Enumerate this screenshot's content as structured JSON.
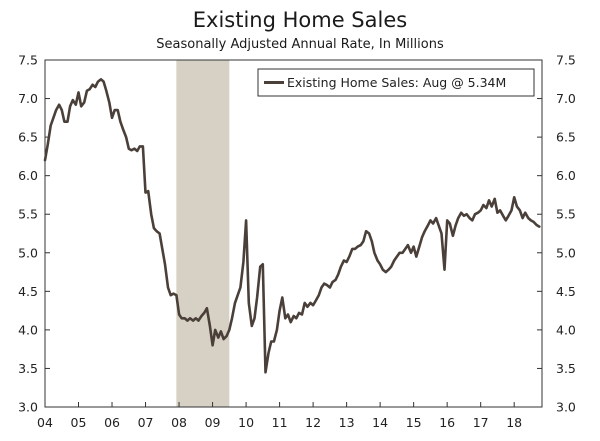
{
  "chart_data": {
    "type": "line",
    "title": "Existing Home Sales",
    "subtitle": "Seasonally Adjusted Annual Rate, In Millions",
    "xlabel": "",
    "ylabel": "",
    "ylim": [
      3.0,
      7.5
    ],
    "xlim": [
      2004.0,
      2018.83
    ],
    "y_ticks": [
      "3.0",
      "3.5",
      "4.0",
      "4.5",
      "5.0",
      "5.5",
      "6.0",
      "6.5",
      "7.0",
      "7.5"
    ],
    "x_ticks": [
      "04",
      "05",
      "06",
      "07",
      "08",
      "09",
      "10",
      "11",
      "12",
      "13",
      "14",
      "15",
      "16",
      "17",
      "18"
    ],
    "recession": {
      "start": 2007.92,
      "end": 2009.5
    },
    "legend_position": "top-right",
    "series": [
      {
        "name": "Existing Home Sales: Aug @ 5.34M",
        "color": "#4a4039",
        "points": [
          [
            2004.0,
            6.2
          ],
          [
            2004.08,
            6.4
          ],
          [
            2004.17,
            6.65
          ],
          [
            2004.25,
            6.75
          ],
          [
            2004.33,
            6.85
          ],
          [
            2004.42,
            6.92
          ],
          [
            2004.5,
            6.85
          ],
          [
            2004.58,
            6.7
          ],
          [
            2004.67,
            6.7
          ],
          [
            2004.75,
            6.9
          ],
          [
            2004.83,
            6.98
          ],
          [
            2004.92,
            6.92
          ],
          [
            2005.0,
            7.08
          ],
          [
            2005.08,
            6.9
          ],
          [
            2005.17,
            6.95
          ],
          [
            2005.25,
            7.1
          ],
          [
            2005.33,
            7.12
          ],
          [
            2005.42,
            7.18
          ],
          [
            2005.5,
            7.15
          ],
          [
            2005.58,
            7.22
          ],
          [
            2005.67,
            7.25
          ],
          [
            2005.75,
            7.22
          ],
          [
            2005.83,
            7.1
          ],
          [
            2005.92,
            6.95
          ],
          [
            2006.0,
            6.75
          ],
          [
            2006.08,
            6.85
          ],
          [
            2006.17,
            6.85
          ],
          [
            2006.25,
            6.7
          ],
          [
            2006.33,
            6.6
          ],
          [
            2006.42,
            6.5
          ],
          [
            2006.5,
            6.35
          ],
          [
            2006.58,
            6.33
          ],
          [
            2006.67,
            6.35
          ],
          [
            2006.75,
            6.32
          ],
          [
            2006.83,
            6.38
          ],
          [
            2006.92,
            6.38
          ],
          [
            2007.0,
            5.78
          ],
          [
            2007.08,
            5.8
          ],
          [
            2007.17,
            5.5
          ],
          [
            2007.25,
            5.32
          ],
          [
            2007.33,
            5.28
          ],
          [
            2007.42,
            5.25
          ],
          [
            2007.5,
            5.05
          ],
          [
            2007.58,
            4.85
          ],
          [
            2007.67,
            4.55
          ],
          [
            2007.75,
            4.45
          ],
          [
            2007.83,
            4.47
          ],
          [
            2007.92,
            4.45
          ],
          [
            2008.0,
            4.2
          ],
          [
            2008.08,
            4.15
          ],
          [
            2008.17,
            4.15
          ],
          [
            2008.25,
            4.12
          ],
          [
            2008.33,
            4.15
          ],
          [
            2008.42,
            4.12
          ],
          [
            2008.5,
            4.15
          ],
          [
            2008.58,
            4.12
          ],
          [
            2008.67,
            4.18
          ],
          [
            2008.75,
            4.22
          ],
          [
            2008.83,
            4.28
          ],
          [
            2008.92,
            4.05
          ],
          [
            2009.0,
            3.8
          ],
          [
            2009.08,
            4.0
          ],
          [
            2009.17,
            3.9
          ],
          [
            2009.25,
            3.98
          ],
          [
            2009.33,
            3.88
          ],
          [
            2009.42,
            3.92
          ],
          [
            2009.5,
            4.0
          ],
          [
            2009.58,
            4.15
          ],
          [
            2009.67,
            4.35
          ],
          [
            2009.75,
            4.45
          ],
          [
            2009.83,
            4.55
          ],
          [
            2009.92,
            4.88
          ],
          [
            2010.0,
            5.42
          ],
          [
            2010.08,
            4.35
          ],
          [
            2010.17,
            4.05
          ],
          [
            2010.25,
            4.15
          ],
          [
            2010.33,
            4.42
          ],
          [
            2010.42,
            4.82
          ],
          [
            2010.5,
            4.85
          ],
          [
            2010.58,
            3.45
          ],
          [
            2010.67,
            3.7
          ],
          [
            2010.75,
            3.85
          ],
          [
            2010.83,
            3.85
          ],
          [
            2010.92,
            4.0
          ],
          [
            2011.0,
            4.25
          ],
          [
            2011.08,
            4.42
          ],
          [
            2011.17,
            4.15
          ],
          [
            2011.25,
            4.2
          ],
          [
            2011.33,
            4.1
          ],
          [
            2011.42,
            4.18
          ],
          [
            2011.5,
            4.15
          ],
          [
            2011.58,
            4.22
          ],
          [
            2011.67,
            4.2
          ],
          [
            2011.75,
            4.35
          ],
          [
            2011.83,
            4.3
          ],
          [
            2011.92,
            4.35
          ],
          [
            2012.0,
            4.32
          ],
          [
            2012.08,
            4.38
          ],
          [
            2012.17,
            4.45
          ],
          [
            2012.25,
            4.55
          ],
          [
            2012.33,
            4.6
          ],
          [
            2012.42,
            4.58
          ],
          [
            2012.5,
            4.55
          ],
          [
            2012.58,
            4.62
          ],
          [
            2012.67,
            4.65
          ],
          [
            2012.75,
            4.72
          ],
          [
            2012.83,
            4.82
          ],
          [
            2012.92,
            4.9
          ],
          [
            2013.0,
            4.88
          ],
          [
            2013.08,
            4.95
          ],
          [
            2013.17,
            5.05
          ],
          [
            2013.25,
            5.05
          ],
          [
            2013.33,
            5.08
          ],
          [
            2013.42,
            5.1
          ],
          [
            2013.5,
            5.15
          ],
          [
            2013.58,
            5.28
          ],
          [
            2013.67,
            5.25
          ],
          [
            2013.75,
            5.15
          ],
          [
            2013.83,
            5.0
          ],
          [
            2013.92,
            4.9
          ],
          [
            2014.0,
            4.85
          ],
          [
            2014.08,
            4.78
          ],
          [
            2014.17,
            4.75
          ],
          [
            2014.25,
            4.78
          ],
          [
            2014.33,
            4.82
          ],
          [
            2014.42,
            4.9
          ],
          [
            2014.5,
            4.95
          ],
          [
            2014.58,
            5.0
          ],
          [
            2014.67,
            5.0
          ],
          [
            2014.75,
            5.05
          ],
          [
            2014.83,
            5.1
          ],
          [
            2014.92,
            5.0
          ],
          [
            2015.0,
            5.08
          ],
          [
            2015.08,
            4.95
          ],
          [
            2015.17,
            5.08
          ],
          [
            2015.25,
            5.2
          ],
          [
            2015.33,
            5.28
          ],
          [
            2015.42,
            5.35
          ],
          [
            2015.5,
            5.42
          ],
          [
            2015.58,
            5.38
          ],
          [
            2015.67,
            5.45
          ],
          [
            2015.75,
            5.35
          ],
          [
            2015.83,
            5.25
          ],
          [
            2015.92,
            4.78
          ],
          [
            2016.0,
            5.42
          ],
          [
            2016.08,
            5.38
          ],
          [
            2016.17,
            5.22
          ],
          [
            2016.25,
            5.35
          ],
          [
            2016.33,
            5.45
          ],
          [
            2016.42,
            5.52
          ],
          [
            2016.5,
            5.48
          ],
          [
            2016.58,
            5.5
          ],
          [
            2016.67,
            5.45
          ],
          [
            2016.75,
            5.42
          ],
          [
            2016.83,
            5.5
          ],
          [
            2016.92,
            5.52
          ],
          [
            2017.0,
            5.55
          ],
          [
            2017.08,
            5.62
          ],
          [
            2017.17,
            5.58
          ],
          [
            2017.25,
            5.68
          ],
          [
            2017.33,
            5.6
          ],
          [
            2017.42,
            5.7
          ],
          [
            2017.5,
            5.52
          ],
          [
            2017.58,
            5.55
          ],
          [
            2017.67,
            5.48
          ],
          [
            2017.75,
            5.42
          ],
          [
            2017.83,
            5.48
          ],
          [
            2017.92,
            5.55
          ],
          [
            2018.0,
            5.72
          ],
          [
            2018.08,
            5.6
          ],
          [
            2018.17,
            5.55
          ],
          [
            2018.25,
            5.45
          ],
          [
            2018.33,
            5.52
          ],
          [
            2018.42,
            5.45
          ],
          [
            2018.5,
            5.42
          ],
          [
            2018.58,
            5.4
          ],
          [
            2018.67,
            5.36
          ],
          [
            2018.75,
            5.34
          ]
        ]
      }
    ]
  }
}
